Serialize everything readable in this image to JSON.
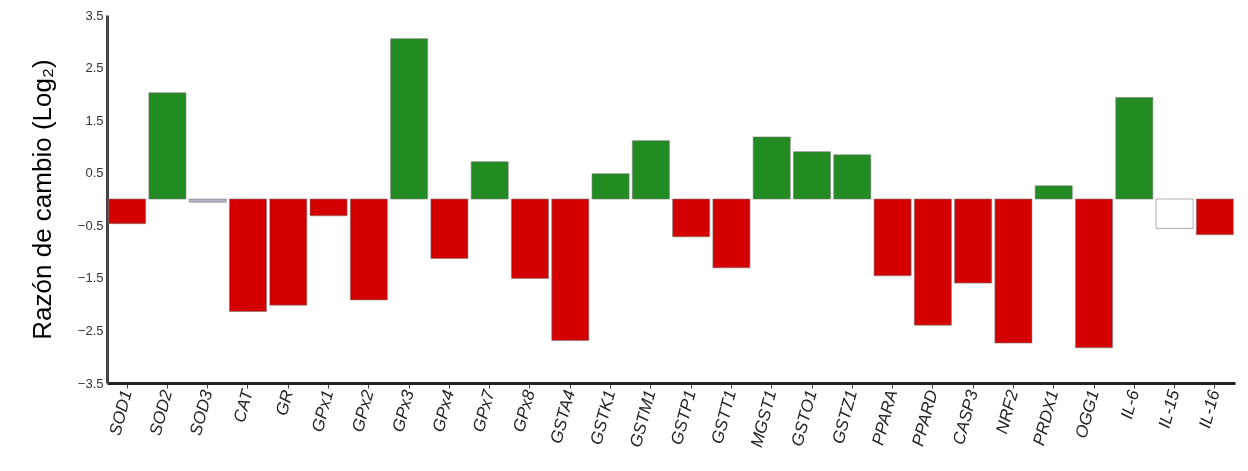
{
  "chart_data": {
    "type": "bar",
    "ylabel": "Razón de cambio (Log₂)",
    "categories": [
      "SOD1",
      "SOD2",
      "SOD3",
      "CAT",
      "GR",
      "GPx1",
      "GPx2",
      "GPx3",
      "GPx4",
      "GPx7",
      "GPx8",
      "GSTA4",
      "GSTK1",
      "GSTM1",
      "GSTP1",
      "GSTT1",
      "MGST1",
      "GSTO1",
      "GSTZ1",
      "PPARA",
      "PPARD",
      "CASP3",
      "NRF2",
      "PRDX1",
      "OGG1",
      "IL-6",
      "IL-15",
      "IL-16"
    ],
    "values": [
      -0.47,
      2.02,
      -0.06,
      -2.14,
      -2.02,
      -0.32,
      -1.92,
      3.05,
      -1.13,
      0.71,
      -1.51,
      -2.69,
      0.48,
      1.11,
      -0.72,
      -1.31,
      1.18,
      0.9,
      0.84,
      -1.46,
      -2.4,
      -1.6,
      -2.74,
      0.25,
      -2.83,
      1.93,
      -0.56,
      -0.68
    ],
    "colors": [
      "#d40000",
      "#228b22",
      "#b4b4c8",
      "#d40000",
      "#d40000",
      "#d40000",
      "#d40000",
      "#228b22",
      "#d40000",
      "#228b22",
      "#d40000",
      "#d40000",
      "#228b22",
      "#228b22",
      "#d40000",
      "#d40000",
      "#228b22",
      "#228b22",
      "#228b22",
      "#d40000",
      "#d40000",
      "#d40000",
      "#d40000",
      "#228b22",
      "#d40000",
      "#228b22",
      "#ffffff",
      "#d40000"
    ],
    "ylim": [
      -3.5,
      3.5
    ],
    "yticks": [
      -3.5,
      -2.5,
      -1.5,
      -0.5,
      0.5,
      1.5,
      2.5,
      3.5
    ],
    "grid": false
  }
}
